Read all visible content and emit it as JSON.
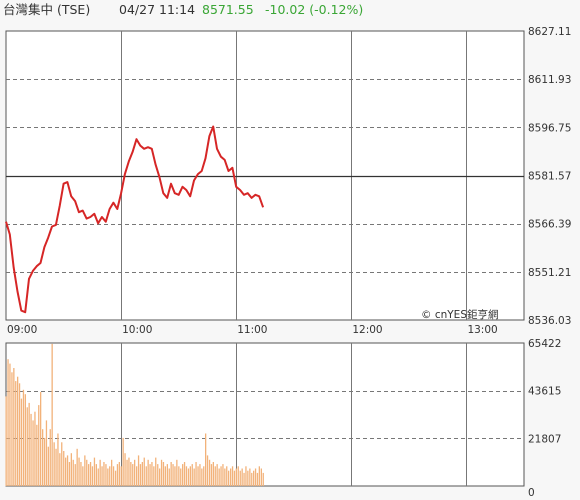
{
  "header": {
    "title": "台灣集中 (TSE)",
    "time": "04/27 11:14",
    "price": "8571.55",
    "change": "-10.02 (-0.12%)",
    "price_color": "#3aa635",
    "change_color": "#3aa635"
  },
  "watermark": "© cnYES鉅亨網",
  "colors": {
    "price_line": "#d62626",
    "volume_bar": "#f2b27a",
    "grid": "#777777",
    "frame": "#555555",
    "ref_line": "#333333"
  },
  "chart_data": [
    {
      "type": "line",
      "reference_value": 8581.57,
      "ylim": [
        8536.03,
        8627.11
      ],
      "yticks": [
        8627.11,
        8611.93,
        8596.75,
        8581.57,
        8566.39,
        8551.21,
        8536.03
      ],
      "ytick_labels": [
        "8627.11",
        "8611.93",
        "8596.75",
        "8581.57",
        "8566.39",
        "8551.21",
        "8536.03"
      ],
      "xticks": [
        "09:00",
        "10:00",
        "11:00",
        "12:00",
        "13:00"
      ],
      "xlim_minutes": [
        0,
        270
      ],
      "x_minutes": [
        0,
        2,
        4,
        6,
        8,
        10,
        12,
        14,
        16,
        18,
        20,
        22,
        24,
        26,
        28,
        30,
        32,
        34,
        36,
        38,
        40,
        42,
        44,
        46,
        48,
        50,
        52,
        54,
        56,
        58,
        60,
        62,
        64,
        66,
        68,
        70,
        72,
        74,
        76,
        78,
        80,
        82,
        84,
        86,
        88,
        90,
        92,
        94,
        96,
        98,
        100,
        102,
        104,
        106,
        108,
        110,
        112,
        114,
        116,
        118,
        120,
        122,
        124,
        126,
        128,
        130,
        132,
        134
      ],
      "values": [
        8567.0,
        8563.0,
        8552.5,
        8545.0,
        8539.0,
        8538.5,
        8549.0,
        8551.5,
        8553.0,
        8554.0,
        8559.0,
        8562.0,
        8565.5,
        8566.0,
        8572.0,
        8579.0,
        8579.5,
        8575.0,
        8573.5,
        8570.0,
        8570.5,
        8568.0,
        8568.5,
        8569.5,
        8566.5,
        8568.5,
        8567.0,
        8571.0,
        8573.0,
        8571.0,
        8576.0,
        8582.0,
        8586.0,
        8589.0,
        8593.0,
        8591.0,
        8590.0,
        8590.5,
        8590.0,
        8585.0,
        8581.0,
        8576.0,
        8574.5,
        8579.0,
        8576.0,
        8575.5,
        8578.0,
        8577.0,
        8575.0,
        8580.0,
        8582.0,
        8583.0,
        8587.0,
        8594.0,
        8597.0,
        8590.0,
        8587.5,
        8586.5,
        8583.0,
        8584.0,
        8578.0,
        8577.0,
        8575.5,
        8576.0,
        8574.5,
        8575.5,
        8575.0,
        8571.55
      ]
    },
    {
      "type": "bar",
      "ylim": [
        0,
        65422
      ],
      "yticks": [
        65422,
        43615,
        21807,
        0
      ],
      "ytick_labels": [
        "65422",
        "43615",
        "21807",
        "0"
      ],
      "x_minutes": [
        0,
        1,
        2,
        3,
        4,
        5,
        6,
        7,
        8,
        9,
        10,
        11,
        12,
        13,
        14,
        15,
        16,
        17,
        18,
        19,
        20,
        21,
        22,
        23,
        24,
        25,
        26,
        27,
        28,
        29,
        30,
        31,
        32,
        33,
        34,
        35,
        36,
        37,
        38,
        39,
        40,
        41,
        42,
        43,
        44,
        45,
        46,
        47,
        48,
        49,
        50,
        51,
        52,
        53,
        54,
        55,
        56,
        57,
        58,
        59,
        60,
        61,
        62,
        63,
        64,
        65,
        66,
        67,
        68,
        69,
        70,
        71,
        72,
        73,
        74,
        75,
        76,
        77,
        78,
        79,
        80,
        81,
        82,
        83,
        84,
        85,
        86,
        87,
        88,
        89,
        90,
        91,
        92,
        93,
        94,
        95,
        96,
        97,
        98,
        99,
        100,
        101,
        102,
        103,
        104,
        105,
        106,
        107,
        108,
        109,
        110,
        111,
        112,
        113,
        114,
        115,
        116,
        117,
        118,
        119,
        120,
        121,
        122,
        123,
        124,
        125,
        126,
        127,
        128,
        129,
        130,
        131,
        132,
        133,
        134
      ],
      "values": [
        41000,
        58000,
        56000,
        52000,
        54000,
        48000,
        50000,
        47000,
        40000,
        44000,
        42000,
        36000,
        38000,
        33000,
        30000,
        34000,
        28000,
        37000,
        43000,
        26000,
        22000,
        30000,
        18000,
        26000,
        65000,
        20000,
        17000,
        24000,
        15000,
        20000,
        16000,
        13000,
        14000,
        11000,
        15000,
        12000,
        10000,
        17000,
        13000,
        11000,
        9000,
        14000,
        12000,
        10000,
        11000,
        9000,
        13000,
        10000,
        8000,
        12000,
        9000,
        11000,
        10000,
        8000,
        9000,
        12000,
        9000,
        7000,
        10000,
        11000,
        9000,
        22000,
        15000,
        12000,
        13000,
        11000,
        10000,
        12000,
        9000,
        14000,
        10000,
        11000,
        13000,
        9000,
        12000,
        10000,
        11000,
        9000,
        13000,
        10000,
        8000,
        12000,
        11000,
        9000,
        10000,
        8000,
        11000,
        10000,
        9000,
        12000,
        9000,
        8000,
        10000,
        11000,
        9000,
        8000,
        9000,
        10000,
        8000,
        11000,
        9000,
        10000,
        8000,
        9000,
        24000,
        14000,
        12000,
        10000,
        11000,
        9000,
        10000,
        8000,
        9000,
        10000,
        8000,
        9000,
        7000,
        8000,
        9000,
        7000,
        8000,
        9000,
        7000,
        8000,
        6000,
        9000,
        7000,
        8000,
        6000,
        7000,
        8000,
        6000,
        9000,
        8000,
        6000
      ]
    }
  ]
}
